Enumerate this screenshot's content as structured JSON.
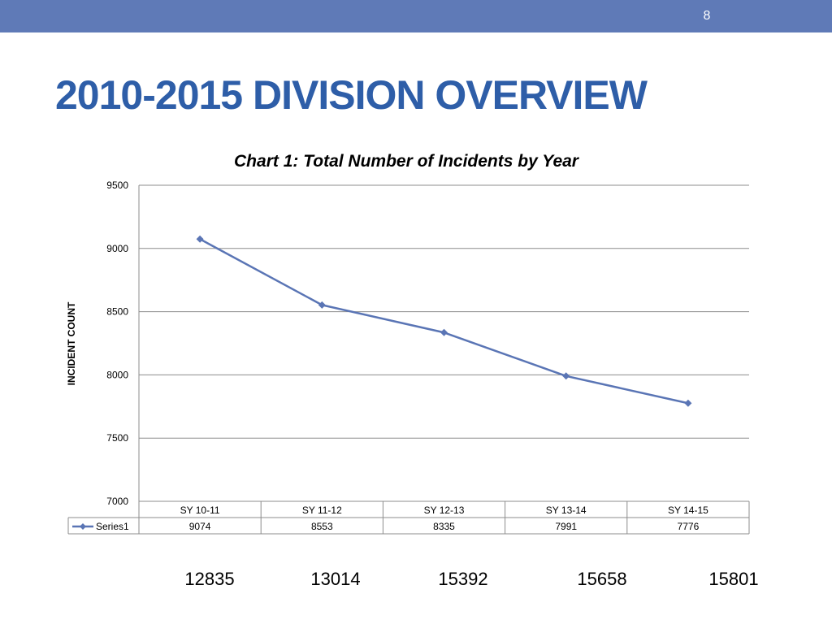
{
  "slide": {
    "number": "8",
    "title": "2010-2015 DIVISION OVERVIEW"
  },
  "colors": {
    "top_bar": "#5f7ab7",
    "title": "#2e5ea8",
    "series": "#5a75b5"
  },
  "chart_data": {
    "type": "line",
    "title": "Chart 1: Total Number of Incidents by Year",
    "ylabel": "INCIDENT COUNT",
    "xlabel": "",
    "categories": [
      "SY 10-11",
      "SY 11-12",
      "SY 12-13",
      "SY 13-14",
      "SY 14-15"
    ],
    "series": [
      {
        "name": "Series1",
        "values": [
          9074,
          8553,
          8335,
          7991,
          7776
        ]
      }
    ],
    "ylim": [
      7000,
      9500
    ],
    "yticks": [
      "7000",
      "7500",
      "8000",
      "8500",
      "9000",
      "9500"
    ],
    "grid": true,
    "legend": "data-table-left",
    "data_table": true,
    "marker": "diamond"
  },
  "extra_values": [
    "12835",
    "13014",
    "15392",
    "15658",
    "15801"
  ]
}
